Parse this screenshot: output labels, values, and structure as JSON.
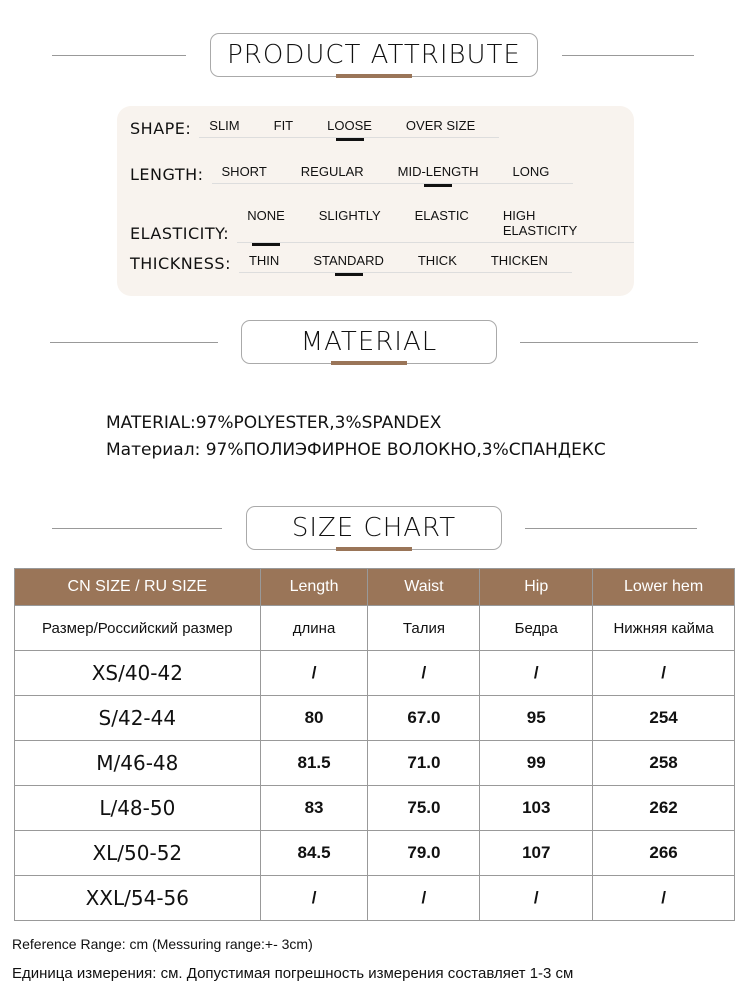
{
  "sections": {
    "attribute": "PRODUCT ATTRIBUTE",
    "material": "MATERIAL",
    "size": "SIZE CHART"
  },
  "attributes": [
    {
      "label": "SHAPE:",
      "options": [
        "SLIM",
        "FIT",
        "LOOSE",
        "OVER SIZE"
      ],
      "selected": 2
    },
    {
      "label": "LENGTH:",
      "options": [
        "SHORT",
        "REGULAR",
        "MID-LENGTH",
        "LONG"
      ],
      "selected": 2
    },
    {
      "label": "ELASTICITY:",
      "options": [
        "NONE",
        "SLIGHTLY",
        "ELASTIC",
        "HIGH ELASTICITY"
      ],
      "selected": 0
    },
    {
      "label": "THICKNESS:",
      "options": [
        "THIN",
        "STANDARD",
        "THICK",
        "THICKEN"
      ],
      "selected": 1
    }
  ],
  "material": {
    "en": "MATERIAL:97%POLYESTER,3%SPANDEX",
    "ru": "Материал: 97%ПОЛИЭФИРНОЕ ВОЛОКНО,3%СПАНДЕКС"
  },
  "size_chart": {
    "headers": [
      "CN SIZE / RU SIZE",
      "Length",
      "Waist",
      "Hip",
      "Lower hem"
    ],
    "headers_ru": [
      "Размер/Российский размер",
      "длина",
      "Талия",
      "Бедра",
      "Нижняя кайма"
    ],
    "rows": [
      [
        "XS/40-42",
        "/",
        "/",
        "/",
        "/"
      ],
      [
        "S/42-44",
        "80",
        "67.0",
        "95",
        "254"
      ],
      [
        "M/46-48",
        "81.5",
        "71.0",
        "99",
        "258"
      ],
      [
        "L/48-50",
        "83",
        "75.0",
        "103",
        "262"
      ],
      [
        "XL/50-52",
        "84.5",
        "79.0",
        "107",
        "266"
      ],
      [
        "XXL/54-56",
        "/",
        "/",
        "/",
        "/"
      ]
    ]
  },
  "notes": {
    "en": "Reference Range: cm (Messuring range:+- 3cm)",
    "ru": "Единица измерения: см. Допустимая погрешность измерения составляет 1-3 см"
  },
  "colors": {
    "accent": "#9a7558",
    "panel": "#f8f3ee"
  }
}
